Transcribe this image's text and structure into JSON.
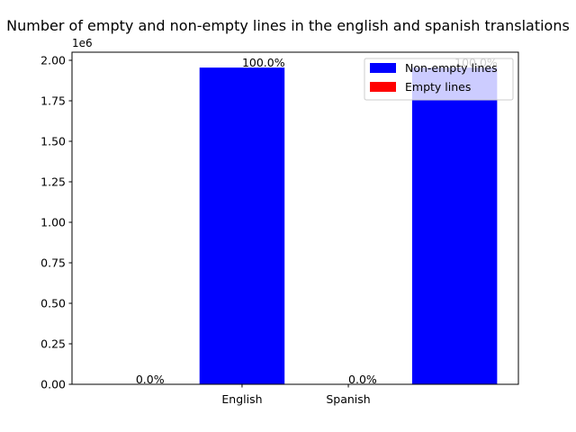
{
  "chart_data": {
    "type": "bar",
    "title": "Number of empty and non-empty lines in the english and spanish translations",
    "xlabel": "",
    "ylabel": "",
    "y_scale_label": "1e6",
    "ylim": [
      0,
      2050000
    ],
    "y_ticks": [
      0,
      250000,
      500000,
      750000,
      1000000,
      1250000,
      1500000,
      1750000,
      2000000
    ],
    "y_tick_labels": [
      "0.00",
      "0.25",
      "0.50",
      "0.75",
      "1.00",
      "1.25",
      "1.50",
      "1.75",
      "2.00"
    ],
    "x_tick_labels": [
      "English",
      "Spanish"
    ],
    "grid": false,
    "legend_position": "top-right",
    "series": [
      {
        "name": "Non-empty lines",
        "color": "#0000ff",
        "bars": [
          {
            "x": 0,
            "value": 1955000,
            "label": "100.0%"
          },
          {
            "x": 2,
            "value": 1955000,
            "label": "100.0%"
          }
        ]
      },
      {
        "name": "Empty lines",
        "color": "#ff0000",
        "bars": [
          {
            "x": -1,
            "value": 0,
            "label": "0.0%"
          },
          {
            "x": 1,
            "value": 0,
            "label": "0.0%"
          }
        ]
      }
    ]
  }
}
